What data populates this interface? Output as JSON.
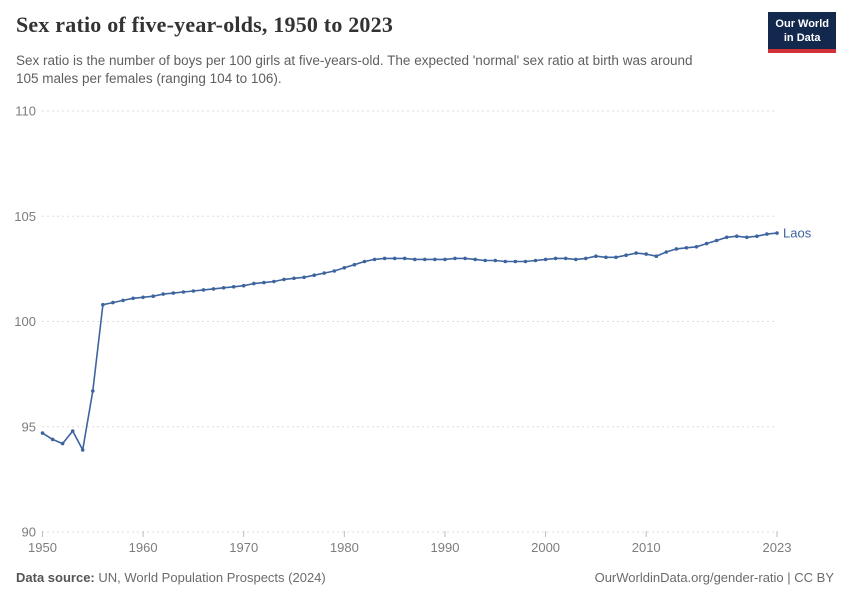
{
  "header": {
    "title": "Sex ratio of five-year-olds, 1950 to 2023",
    "subtitle": "Sex ratio is the number of boys per 100 girls at five-years-old. The expected 'normal' sex ratio at birth was around 105 males per females (ranging 104 to 106).",
    "logo": {
      "line1": "Our World",
      "line2": "in Data"
    }
  },
  "chart_data": {
    "type": "line",
    "title": "Sex ratio of five-year-olds, 1950 to 2023",
    "xlabel": "",
    "ylabel": "",
    "ylim": [
      90,
      110
    ],
    "yticks": [
      90,
      95,
      100,
      105,
      110
    ],
    "xticks": [
      1950,
      1960,
      1970,
      1980,
      1990,
      2000,
      2010,
      2023
    ],
    "grid": "horizontal-dashed",
    "legend_position": "end-of-line-label",
    "marker": "circle",
    "series": [
      {
        "name": "Laos",
        "color": "#3d649e",
        "x": [
          1950,
          1951,
          1952,
          1953,
          1954,
          1955,
          1956,
          1957,
          1958,
          1959,
          1960,
          1961,
          1962,
          1963,
          1964,
          1965,
          1966,
          1967,
          1968,
          1969,
          1970,
          1971,
          1972,
          1973,
          1974,
          1975,
          1976,
          1977,
          1978,
          1979,
          1980,
          1981,
          1982,
          1983,
          1984,
          1985,
          1986,
          1987,
          1988,
          1989,
          1990,
          1991,
          1992,
          1993,
          1994,
          1995,
          1996,
          1997,
          1998,
          1999,
          2000,
          2001,
          2002,
          2003,
          2004,
          2005,
          2006,
          2007,
          2008,
          2009,
          2010,
          2011,
          2012,
          2013,
          2014,
          2015,
          2016,
          2017,
          2018,
          2019,
          2020,
          2021,
          2022,
          2023
        ],
        "values": [
          94.7,
          94.4,
          94.2,
          94.8,
          93.9,
          96.7,
          100.8,
          100.9,
          101.0,
          101.1,
          101.15,
          101.2,
          101.3,
          101.35,
          101.4,
          101.45,
          101.5,
          101.55,
          101.6,
          101.65,
          101.7,
          101.8,
          101.85,
          101.9,
          102.0,
          102.05,
          102.1,
          102.2,
          102.3,
          102.4,
          102.55,
          102.7,
          102.85,
          102.95,
          103.0,
          103.0,
          103.0,
          102.95,
          102.95,
          102.95,
          102.95,
          103.0,
          103.0,
          102.95,
          102.9,
          102.9,
          102.85,
          102.85,
          102.85,
          102.9,
          102.95,
          103.0,
          103.0,
          102.95,
          103.0,
          103.1,
          103.05,
          103.05,
          103.15,
          103.25,
          103.2,
          103.1,
          103.3,
          103.45,
          103.5,
          103.55,
          103.7,
          103.85,
          104.0,
          104.05,
          104.0,
          104.05,
          104.15,
          104.2
        ]
      }
    ]
  },
  "footer": {
    "source_label": "Data source:",
    "source_text": " UN, World Population Prospects (2024)",
    "credit": "OurWorldinData.org/gender-ratio | CC BY"
  },
  "colors": {
    "series_blue": "#3d649e",
    "logo_bg": "#12294d",
    "logo_red": "#d13239",
    "grid": "#dedede",
    "tick_text": "#7d7d7d"
  }
}
